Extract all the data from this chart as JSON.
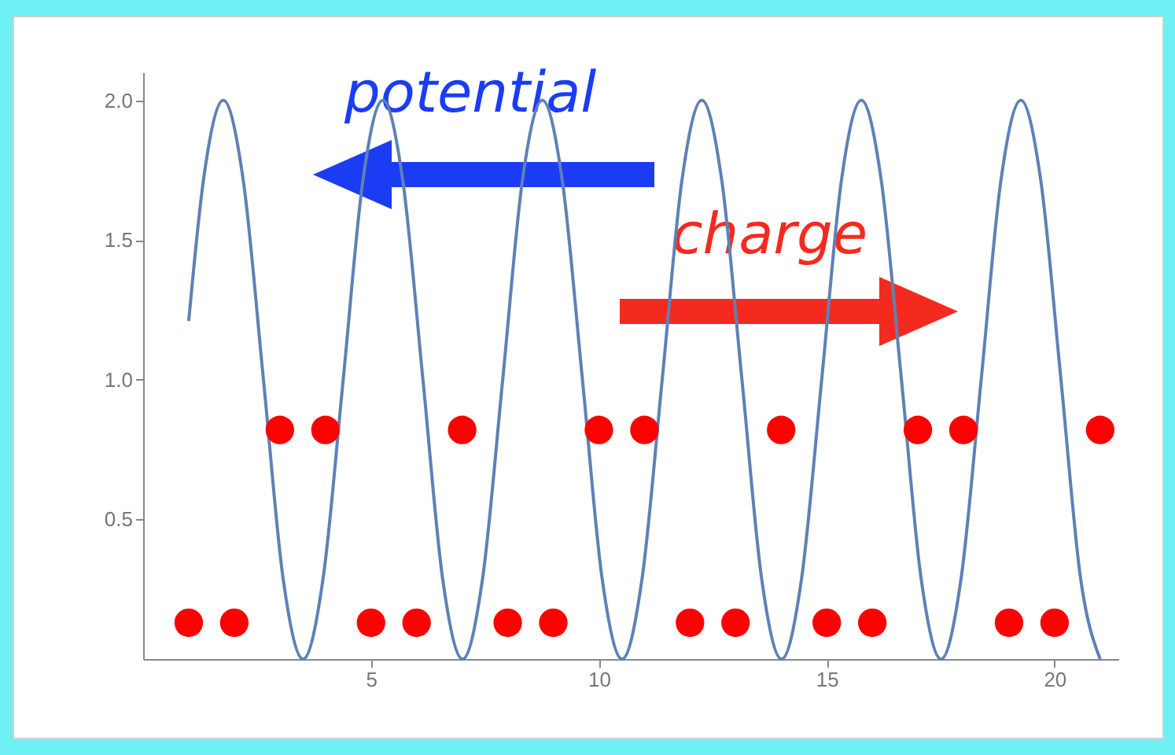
{
  "chart_data": {
    "type": "line",
    "annotations": [
      "potential",
      "charge"
    ],
    "xlim": [
      0,
      21.4
    ],
    "ylim": [
      0,
      2.1
    ],
    "xticks": [
      5,
      10,
      15,
      20
    ],
    "yticks": [
      {
        "value": 0.5,
        "label": "0.5"
      },
      {
        "value": 1,
        "label": "1.0"
      },
      {
        "value": 1.5,
        "label": "1.5"
      },
      {
        "value": 2,
        "label": "2.0"
      }
    ],
    "grid": false,
    "series": [
      {
        "color": "#5e81b5",
        "marker": "none",
        "x": [
          1.0,
          1.32,
          1.76,
          2.2,
          2.64,
          3.07,
          3.51,
          3.95,
          4.39,
          4.82,
          5.26,
          5.7,
          6.14,
          6.57,
          7.01,
          7.45,
          7.89,
          8.32,
          8.76,
          9.2,
          9.64,
          10.07,
          10.51,
          10.95,
          11.39,
          11.82,
          12.26,
          12.7,
          13.14,
          13.57,
          14.01,
          14.45,
          14.89,
          15.32,
          15.76,
          16.2,
          16.64,
          17.07,
          17.51,
          17.95,
          18.39,
          18.82,
          19.26,
          19.7,
          20.14,
          20.57,
          21.0
        ],
        "values": [
          1.21,
          1.71,
          2,
          1.71,
          1,
          0.29,
          0,
          0.29,
          1,
          1.71,
          2,
          1.71,
          1,
          0.29,
          0,
          0.29,
          1,
          1.71,
          2,
          1.71,
          1,
          0.29,
          0,
          0.29,
          1,
          1.71,
          2,
          1.71,
          1,
          0.29,
          0,
          0.29,
          1,
          1.71,
          2,
          1.71,
          1,
          0.29,
          0,
          0.29,
          1,
          1.71,
          2,
          1.71,
          1,
          0.29,
          0
        ]
      },
      {
        "type": "scatter",
        "color": "#ff0000",
        "marker": "circle",
        "x": [
          1,
          2,
          3,
          4,
          5,
          6,
          7,
          8,
          9,
          10,
          11,
          12,
          13,
          14,
          15,
          16,
          17,
          18,
          19,
          20,
          21
        ],
        "values": [
          0.13,
          0.13,
          0.82,
          0.82,
          0.13,
          0.13,
          0.82,
          0.13,
          0.13,
          0.82,
          0.82,
          0.13,
          0.13,
          0.82,
          0.13,
          0.13,
          0.82,
          0.82,
          0.13,
          0.13,
          0.82
        ]
      }
    ]
  }
}
